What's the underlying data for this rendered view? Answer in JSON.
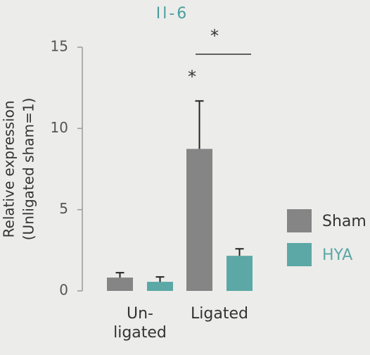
{
  "chart_data": {
    "type": "bar",
    "title": "Il-6",
    "ylabel": [
      "Relative expression",
      "(Unligated sham=1)"
    ],
    "categories": [
      "Un-\nligated",
      "Ligated"
    ],
    "series": [
      {
        "name": "Sham",
        "color": "#858585",
        "values": [
          0.82,
          8.74
        ],
        "errors": [
          0.3,
          2.95
        ]
      },
      {
        "name": "HYA",
        "color": "#5ba8a6",
        "values": [
          0.56,
          2.16
        ],
        "errors": [
          0.3,
          0.43
        ]
      }
    ],
    "ylim": [
      0,
      15
    ],
    "yticks": [
      0,
      5,
      10,
      15
    ],
    "annotations": [
      "*",
      "*"
    ],
    "legend": "right"
  }
}
